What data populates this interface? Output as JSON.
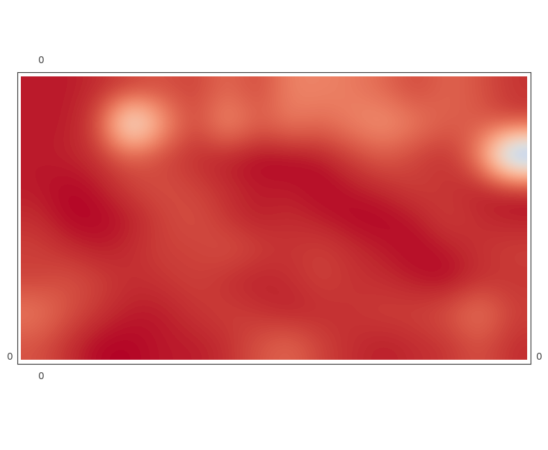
{
  "chart_data": {
    "type": "heatmap",
    "cells": [
      [
        0.98,
        0.98,
        0.96,
        0.93,
        0.9,
        0.93,
        0.85,
        0.92,
        0.8,
        0.8,
        0.82,
        0.86,
        0.92,
        0.86,
        0.9,
        0.95
      ],
      [
        0.98,
        0.98,
        0.92,
        0.38,
        0.75,
        0.93,
        0.76,
        0.88,
        0.82,
        0.86,
        0.8,
        0.76,
        0.82,
        0.88,
        0.88,
        0.93
      ],
      [
        0.98,
        0.97,
        0.95,
        0.88,
        0.93,
        0.96,
        0.98,
        1.0,
        1.0,
        0.98,
        0.93,
        0.88,
        0.93,
        0.96,
        0.82,
        0.18
      ],
      [
        0.98,
        1.0,
        0.98,
        0.93,
        0.9,
        0.93,
        0.96,
        0.98,
        0.98,
        1.0,
        0.98,
        0.96,
        0.93,
        0.95,
        0.98,
        0.98
      ],
      [
        0.96,
        1.0,
        1.0,
        0.98,
        0.93,
        0.9,
        0.95,
        0.98,
        0.96,
        0.98,
        1.0,
        1.0,
        0.98,
        0.93,
        0.96,
        0.98
      ],
      [
        0.93,
        0.96,
        0.98,
        0.96,
        0.93,
        0.93,
        0.9,
        0.93,
        0.95,
        0.93,
        0.96,
        0.98,
        1.0,
        0.98,
        0.95,
        0.93
      ],
      [
        0.93,
        0.9,
        0.93,
        0.96,
        0.95,
        0.93,
        0.96,
        0.98,
        0.96,
        0.93,
        0.95,
        0.96,
        0.98,
        1.0,
        0.96,
        0.95
      ],
      [
        0.82,
        0.9,
        0.95,
        0.98,
        0.98,
        0.95,
        0.93,
        0.95,
        0.98,
        0.96,
        0.95,
        0.93,
        0.93,
        0.9,
        0.82,
        0.93
      ],
      [
        0.9,
        0.96,
        1.0,
        1.0,
        0.98,
        0.98,
        0.96,
        0.9,
        0.86,
        0.93,
        0.96,
        0.98,
        0.96,
        0.95,
        0.9,
        0.96
      ]
    ],
    "color_range": [
      0,
      1
    ],
    "color": "coolwarm",
    "annotations": [
      "0",
      "0",
      "0",
      "0"
    ],
    "tick_labels": false
  }
}
